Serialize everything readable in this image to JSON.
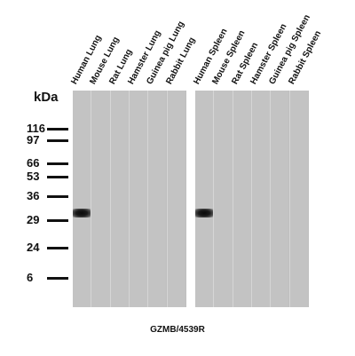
{
  "unit_label": "kDa",
  "markers": [
    {
      "label": "116",
      "kda": 116
    },
    {
      "label": "97",
      "kda": 97
    },
    {
      "label": "66",
      "kda": 66
    },
    {
      "label": "53",
      "kda": 53
    },
    {
      "label": "36",
      "kda": 36
    },
    {
      "label": "29",
      "kda": 29
    },
    {
      "label": "24",
      "kda": 24
    },
    {
      "label": "6",
      "kda": 6
    }
  ],
  "panels": [
    {
      "lanes": [
        {
          "label": "Human Lung",
          "band_kda": 31
        },
        {
          "label": "Mouse Lung",
          "band_kda": null
        },
        {
          "label": "Rat Lung",
          "band_kda": null
        },
        {
          "label": "Hamster Lung",
          "band_kda": null
        },
        {
          "label": "Guinea pig Lung",
          "band_kda": null
        },
        {
          "label": "Rabbit Lung",
          "band_kda": null
        }
      ]
    },
    {
      "lanes": [
        {
          "label": "Human Spleen",
          "band_kda": 31
        },
        {
          "label": "Mouse Spleen",
          "band_kda": null
        },
        {
          "label": "Rat Spleen",
          "band_kda": null
        },
        {
          "label": "Hamster Spleen",
          "band_kda": null
        },
        {
          "label": "Guinea pig Spleen",
          "band_kda": null
        },
        {
          "label": "Rabbit Spleen",
          "band_kda": null
        }
      ]
    }
  ],
  "caption": "GZMB/4539R",
  "colors": {
    "membrane": "#c3c3c3",
    "band": "#111111",
    "text": "#111111"
  }
}
